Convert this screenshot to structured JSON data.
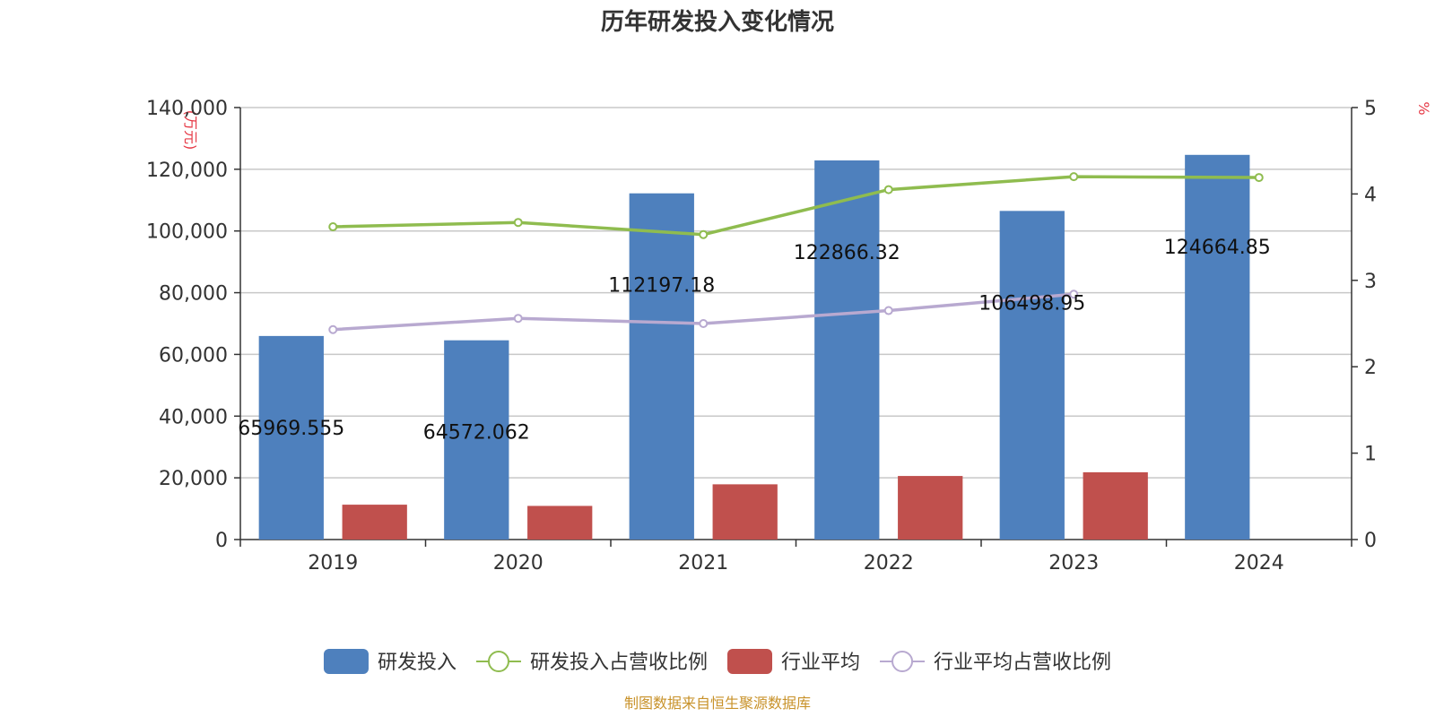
{
  "chart_data": {
    "type": "bar",
    "title": "历年研发投入变化情况",
    "categories": [
      "2019",
      "2020",
      "2021",
      "2022",
      "2023",
      "2024"
    ],
    "series": [
      {
        "name": "研发投入",
        "kind": "bar",
        "axis": "left",
        "color": "#4e80bd",
        "values": [
          65969.555,
          64572.062,
          112197.18,
          122866.32,
          106498.95,
          124664.85
        ],
        "labels": [
          "65969.555",
          "64572.062",
          "112197.18",
          "122866.32",
          "106498.95",
          "124664.85"
        ]
      },
      {
        "name": "研发投入占营收比例",
        "kind": "line",
        "axis": "right",
        "color": "#8fbc4f",
        "values": [
          3.62,
          3.67,
          3.53,
          4.05,
          4.2,
          4.19
        ]
      },
      {
        "name": "行业平均",
        "kind": "bar",
        "axis": "left",
        "color": "#c0504d",
        "values": [
          11300,
          10900,
          17900,
          20600,
          21800,
          null
        ]
      },
      {
        "name": "行业平均占营收比例",
        "kind": "line",
        "axis": "right",
        "color": "#b8a9d0",
        "values": [
          2.43,
          2.56,
          2.5,
          2.65,
          2.84,
          null
        ]
      }
    ],
    "y_left": {
      "min": 0,
      "max": 140000,
      "ticks": [
        "0",
        "20,000",
        "40,000",
        "60,000",
        "80,000",
        "100,000",
        "120,000",
        "140,000"
      ],
      "unit": "(万元)"
    },
    "y_right": {
      "min": 0,
      "max": 5,
      "ticks": [
        "0",
        "1",
        "2",
        "3",
        "4",
        "5"
      ],
      "unit": "%"
    },
    "grid": true,
    "legend_position": "bottom-center"
  },
  "source_note": "制图数据来自恒生聚源数据库"
}
